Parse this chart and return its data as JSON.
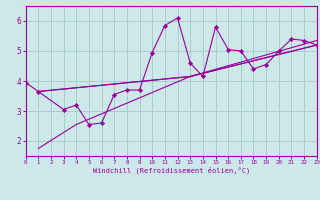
{
  "title": "",
  "xlabel": "Windchill (Refroidissement éolien,°C)",
  "bg_color": "#cce8e8",
  "grid_color": "#aacccc",
  "line_color": "#990099",
  "marker_color": "#990099",
  "xlim": [
    0,
    23
  ],
  "ylim": [
    1.5,
    6.5
  ],
  "yticks": [
    2,
    3,
    4,
    5,
    6
  ],
  "xticks": [
    0,
    1,
    2,
    3,
    4,
    5,
    6,
    7,
    8,
    9,
    10,
    11,
    12,
    13,
    14,
    15,
    16,
    17,
    18,
    19,
    20,
    21,
    22,
    23
  ],
  "series1_x": [
    0,
    1,
    3,
    4,
    5,
    6,
    7,
    8,
    9,
    10,
    11,
    12,
    13,
    14,
    15,
    16,
    17,
    18,
    19,
    20,
    21,
    22,
    23
  ],
  "series1_y": [
    3.95,
    3.65,
    3.05,
    3.2,
    2.55,
    2.6,
    3.55,
    3.7,
    3.7,
    4.95,
    5.85,
    6.1,
    4.6,
    4.15,
    5.8,
    5.05,
    5.0,
    4.4,
    4.55,
    5.0,
    5.4,
    5.35,
    5.2
  ],
  "series2_x": [
    1,
    4,
    13,
    23
  ],
  "series2_y": [
    1.75,
    2.55,
    4.15,
    5.2
  ],
  "series3_x": [
    1,
    13,
    23
  ],
  "series3_y": [
    3.65,
    4.15,
    5.2
  ],
  "series4_x": [
    1,
    13,
    23
  ],
  "series4_y": [
    3.65,
    4.15,
    5.35
  ]
}
